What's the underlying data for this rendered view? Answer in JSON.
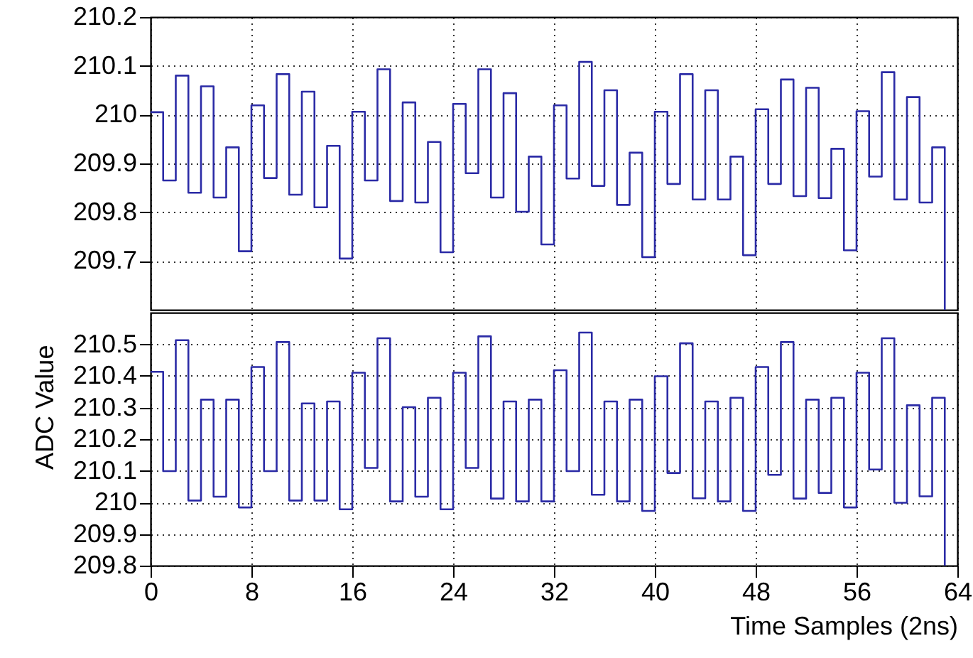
{
  "chart_data": [
    {
      "type": "histogram",
      "bins": [
        0,
        1,
        2,
        3,
        4,
        5,
        6,
        7,
        8,
        9,
        10,
        11,
        12,
        13,
        14,
        15,
        16,
        17,
        18,
        19,
        20,
        21,
        22,
        23,
        24,
        25,
        26,
        27,
        28,
        29,
        30,
        31,
        32,
        33,
        34,
        35,
        36,
        37,
        38,
        39,
        40,
        41,
        42,
        43,
        44,
        45,
        46,
        47,
        48,
        49,
        50,
        51,
        52,
        53,
        54,
        55,
        56,
        57,
        58,
        59,
        60,
        61,
        62,
        63
      ],
      "values": [
        210.005,
        209.865,
        210.08,
        209.84,
        210.058,
        209.83,
        209.933,
        209.72,
        210.019,
        209.87,
        210.083,
        209.836,
        210.047,
        209.81,
        209.936,
        209.705,
        210.006,
        209.865,
        210.093,
        209.823,
        210.025,
        209.82,
        209.944,
        209.718,
        210.022,
        209.88,
        210.093,
        209.83,
        210.044,
        209.801,
        209.914,
        209.734,
        210.019,
        209.869,
        210.108,
        209.854,
        210.05,
        209.815,
        209.922,
        209.708,
        210.006,
        209.858,
        210.083,
        209.826,
        210.05,
        209.826,
        209.914,
        209.712,
        210.011,
        209.858,
        210.072,
        209.833,
        210.055,
        209.829,
        209.93,
        209.722,
        210.007,
        209.873,
        210.087,
        209.826,
        210.036,
        209.82,
        209.933
      ],
      "color": "#2b2ba6",
      "xlim": [
        0,
        64
      ],
      "xticks": [
        0,
        8,
        16,
        24,
        32,
        40,
        48,
        56,
        64
      ],
      "ylim": [
        209.6,
        210.2
      ],
      "yticks": [
        209.7,
        209.8,
        209.9,
        210,
        210.1,
        210.2
      ],
      "grid": true,
      "tick_labels": "y"
    },
    {
      "type": "histogram",
      "xlabel": "Time Samples (2ns)",
      "ylabel": "ADC Value",
      "bins": [
        0,
        1,
        2,
        3,
        4,
        5,
        6,
        7,
        8,
        9,
        10,
        11,
        12,
        13,
        14,
        15,
        16,
        17,
        18,
        19,
        20,
        21,
        22,
        23,
        24,
        25,
        26,
        27,
        28,
        29,
        30,
        31,
        32,
        33,
        34,
        35,
        36,
        37,
        38,
        39,
        40,
        41,
        42,
        43,
        44,
        45,
        46,
        47,
        48,
        49,
        50,
        51,
        52,
        53,
        54,
        55,
        56,
        57,
        58,
        59,
        60,
        61,
        62,
        63
      ],
      "values": [
        210.413,
        210.099,
        210.513,
        210.006,
        210.325,
        210.018,
        210.325,
        209.984,
        210.428,
        210.099,
        210.507,
        210.006,
        210.313,
        210.006,
        210.319,
        209.978,
        210.41,
        210.109,
        210.519,
        210.003,
        210.301,
        210.018,
        210.331,
        209.978,
        210.41,
        210.109,
        210.525,
        210.012,
        210.319,
        210.003,
        210.325,
        210.003,
        210.418,
        210.099,
        210.537,
        210.024,
        210.319,
        210.003,
        210.325,
        209.973,
        210.399,
        210.093,
        210.503,
        210.013,
        210.319,
        210.003,
        210.331,
        209.973,
        210.428,
        210.087,
        210.507,
        210.012,
        210.325,
        210.03,
        210.331,
        209.984,
        210.41,
        210.104,
        210.519,
        209.999,
        210.307,
        210.019,
        210.331
      ],
      "color": "#2b2ba6",
      "xlim": [
        0,
        64
      ],
      "xticks": [
        0,
        8,
        16,
        24,
        32,
        40,
        48,
        56,
        64
      ],
      "ylim": [
        209.8,
        210.6
      ],
      "yticks": [
        209.8,
        209.9,
        210,
        210.1,
        210.2,
        210.3,
        210.4,
        210.5
      ],
      "grid": true
    }
  ]
}
